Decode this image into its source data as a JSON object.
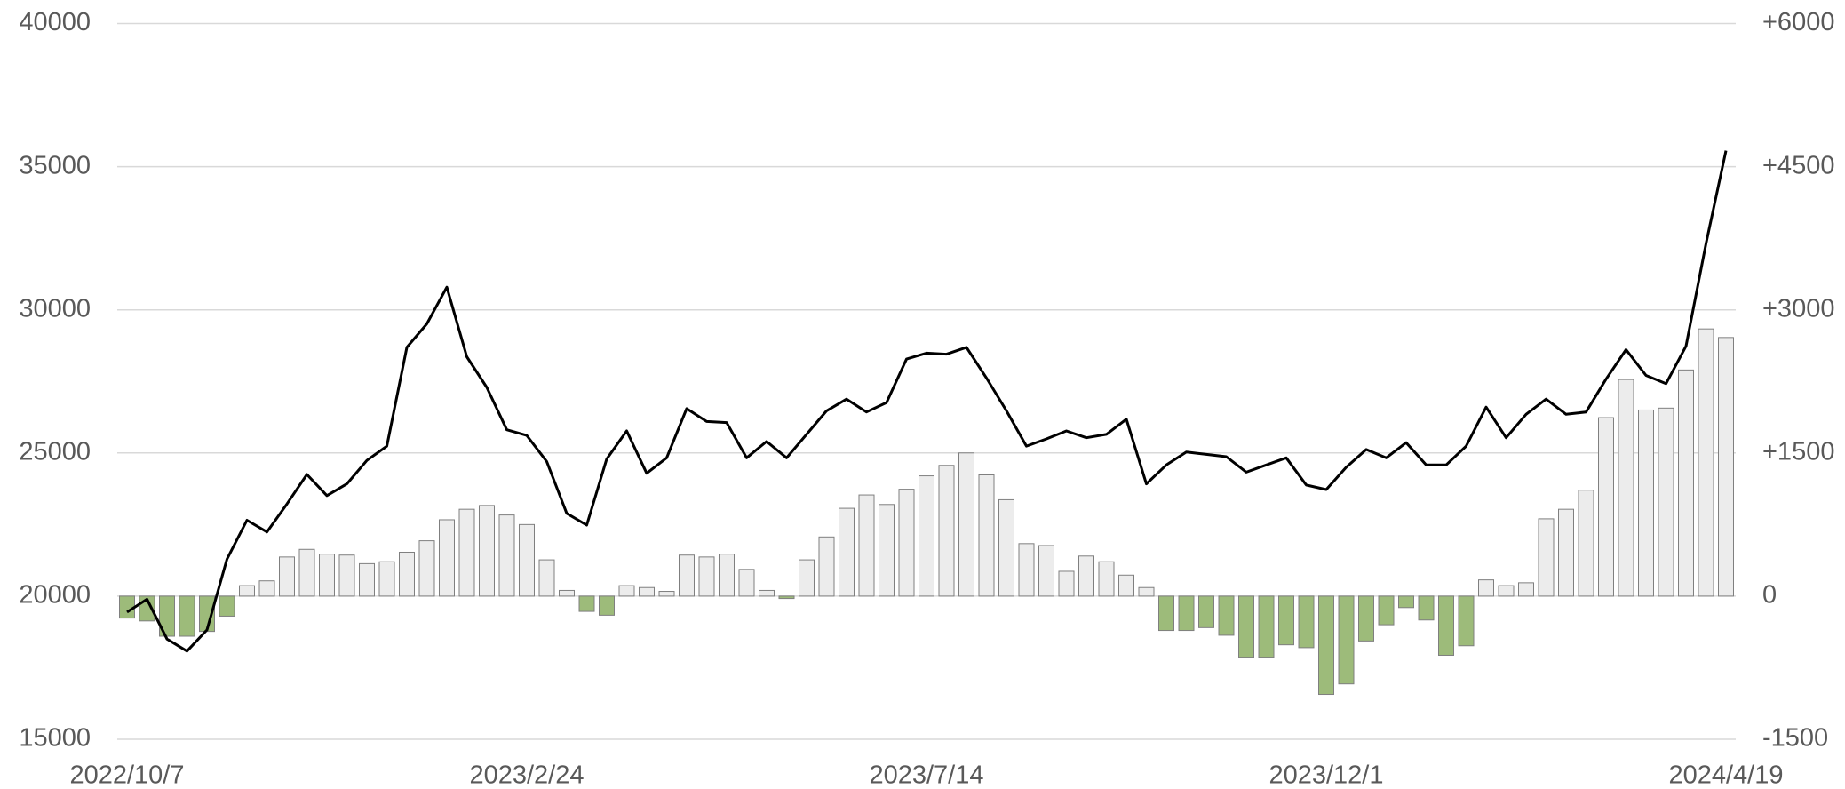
{
  "chart_data": {
    "type": "bar-line",
    "categories": [
      "2022/10/7",
      null,
      null,
      null,
      null,
      null,
      null,
      null,
      null,
      null,
      null,
      null,
      null,
      null,
      null,
      null,
      null,
      null,
      null,
      null,
      "2023/2/24",
      null,
      null,
      null,
      null,
      null,
      null,
      null,
      null,
      null,
      null,
      null,
      null,
      null,
      null,
      null,
      null,
      null,
      null,
      null,
      "2023/7/14",
      null,
      null,
      null,
      null,
      null,
      null,
      null,
      null,
      null,
      null,
      null,
      null,
      null,
      null,
      null,
      null,
      null,
      null,
      null,
      "2023/12/1",
      null,
      null,
      null,
      null,
      null,
      null,
      null,
      null,
      null,
      null,
      null,
      null,
      null,
      null,
      null,
      null,
      null,
      null,
      null,
      "2024/4/19"
    ],
    "series": [
      {
        "type": "bar",
        "axis": "y2",
        "color": "#ececec",
        "negative_color": "#9dbb7a",
        "values": [
          -230,
          -260,
          -420,
          -420,
          -370,
          -210,
          110,
          160,
          410,
          490,
          440,
          430,
          340,
          360,
          460,
          580,
          800,
          910,
          950,
          850,
          750,
          380,
          60,
          -160,
          -200,
          110,
          90,
          50,
          430,
          410,
          440,
          280,
          60,
          -25,
          380,
          620,
          920,
          1060,
          960,
          1120,
          1260,
          1370,
          1500,
          1270,
          1010,
          550,
          530,
          260,
          420,
          360,
          220,
          90,
          -360,
          -360,
          -330,
          -410,
          -640,
          -640,
          -510,
          -540,
          -1030,
          -920,
          -470,
          -300,
          -120,
          -250,
          -620,
          -520,
          170,
          110,
          140,
          810,
          910,
          1110,
          1870,
          2270,
          1950,
          1970,
          2370,
          2800,
          2710
        ]
      },
      {
        "type": "line",
        "color": "#000000",
        "values": [
          19440,
          19890,
          18500,
          18080,
          18820,
          21290,
          22650,
          22240,
          23220,
          24250,
          23510,
          23920,
          24740,
          25240,
          28690,
          29510,
          30790,
          28360,
          27290,
          25810,
          25610,
          24700,
          22890,
          22480,
          24790,
          25770,
          24290,
          24830,
          26550,
          26100,
          26060,
          24830,
          25400,
          24830,
          25650,
          26470,
          26880,
          26430,
          26760,
          28280,
          28490,
          28450,
          28690,
          27620,
          26470,
          25240,
          25490,
          25770,
          25530,
          25650,
          26180,
          23920,
          24580,
          25030,
          24950,
          24870,
          24330,
          24580,
          24830,
          23880,
          23720,
          24500,
          25120,
          24830,
          25360,
          24580,
          24580,
          25240,
          26600,
          25530,
          26350,
          26880,
          26350,
          26430,
          27580,
          28610,
          27710,
          27420,
          28730,
          32310,
          35560
        ]
      }
    ],
    "ylim": [
      15000,
      40000
    ],
    "yticks": [
      15000,
      20000,
      25000,
      30000,
      35000,
      40000
    ],
    "y2lim": [
      -1500,
      6000
    ],
    "y2ticks": [
      {
        "value": -1500,
        "label": "-1500"
      },
      0,
      {
        "value": 1500,
        "label": "+1500"
      },
      {
        "value": 3000,
        "label": "+3000"
      },
      {
        "value": 4500,
        "label": "+4500"
      },
      {
        "value": 6000,
        "label": "+6000"
      }
    ],
    "grid": true
  }
}
